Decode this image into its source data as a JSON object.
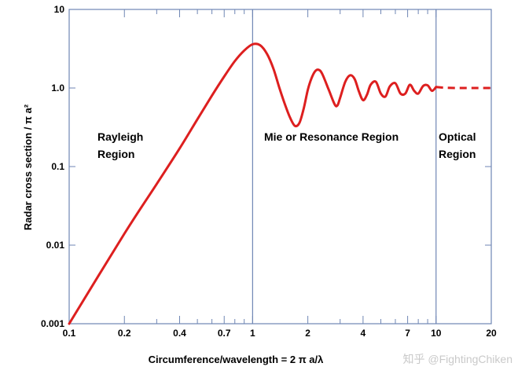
{
  "chart_data": {
    "type": "line",
    "title": "",
    "xlabel": "Circumference/wavelength = 2 π a/λ",
    "ylabel": "Radar cross section / π a²",
    "x_scale": "log",
    "y_scale": "log",
    "xlim": [
      0.1,
      20
    ],
    "ylim": [
      0.001,
      10
    ],
    "x_ticks": [
      0.1,
      0.2,
      0.4,
      0.7,
      1,
      2,
      4,
      7,
      10,
      20
    ],
    "x_tick_labels": [
      "0.1",
      "0.2",
      "0.4",
      "0.7",
      "1",
      "2",
      "4",
      "7",
      "10",
      "20"
    ],
    "y_ticks": [
      0.001,
      0.01,
      0.1,
      1.0,
      10
    ],
    "y_tick_labels": [
      "0.001",
      "0.01",
      "0.1",
      "1.0",
      "10"
    ],
    "grid": false,
    "line_color": "#dd1f1f",
    "axis_color": "#6f86b4",
    "regions": [
      {
        "label_lines": [
          "Rayleigh",
          "Region"
        ],
        "x_range": [
          0.1,
          1
        ]
      },
      {
        "label_lines": [
          "Mie or Resonance Region"
        ],
        "x_range": [
          1,
          10
        ]
      },
      {
        "label_lines": [
          "Optical",
          "Region"
        ],
        "x_range": [
          10,
          20
        ]
      }
    ],
    "region_boundaries": [
      1,
      10
    ],
    "series": [
      {
        "style": "solid",
        "x": [
          0.1,
          0.2,
          0.3,
          0.4,
          0.5,
          0.6,
          0.7,
          0.8,
          0.9,
          1.0,
          1.1,
          1.2,
          1.3,
          1.4,
          1.5,
          1.6,
          1.7,
          1.8,
          1.9,
          2.0,
          2.1,
          2.2,
          2.3,
          2.4,
          2.6,
          2.8,
          2.9,
          3.0,
          3.2,
          3.4,
          3.6,
          3.8,
          4.0,
          4.2,
          4.4,
          4.7,
          5.0,
          5.3,
          5.6,
          6.0,
          6.4,
          6.8,
          7.2,
          7.6,
          8.0,
          8.5,
          9.0,
          9.5,
          10.0
        ],
        "y": [
          0.001,
          0.014,
          0.06,
          0.17,
          0.4,
          0.8,
          1.4,
          2.2,
          3.0,
          3.6,
          3.5,
          2.7,
          1.75,
          1.0,
          0.62,
          0.42,
          0.33,
          0.36,
          0.55,
          0.95,
          1.35,
          1.65,
          1.7,
          1.5,
          0.95,
          0.62,
          0.6,
          0.75,
          1.2,
          1.45,
          1.3,
          0.9,
          0.7,
          0.82,
          1.1,
          1.2,
          0.85,
          0.78,
          1.05,
          1.15,
          0.85,
          0.85,
          1.1,
          0.92,
          0.85,
          1.06,
          1.08,
          0.92,
          1.03
        ]
      },
      {
        "style": "dashed",
        "x": [
          10.0,
          11.0,
          13.0,
          15.0,
          17.0,
          20.0
        ],
        "y": [
          1.03,
          1.01,
          1.0,
          1.0,
          1.0,
          1.0
        ]
      }
    ]
  },
  "watermark": "知乎 @FightingChiken"
}
